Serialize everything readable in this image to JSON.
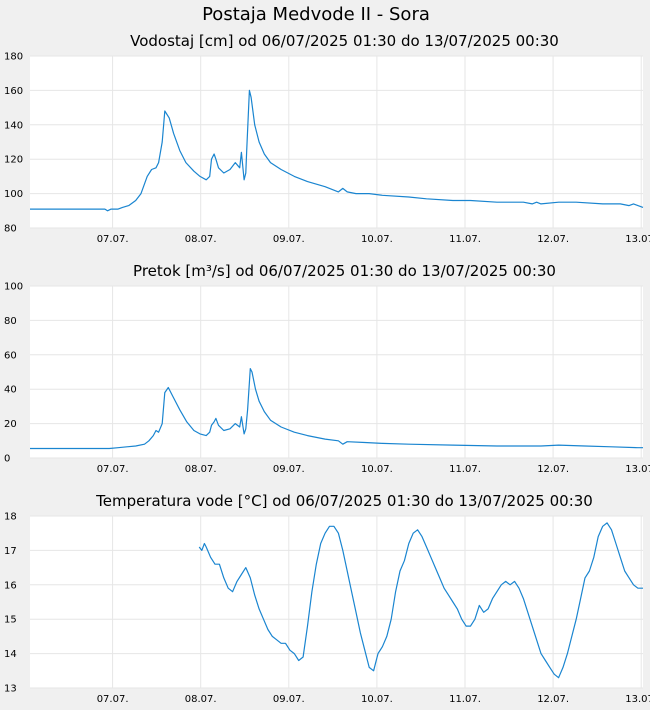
{
  "figure_title": "Postaja Medvode II - Sora",
  "chart_data": [
    {
      "type": "line",
      "title": "Vodostaj [cm] od 06/07/2025 01:30 do 13/07/2025 00:30",
      "x_ticks": [
        "07.07.",
        "08.07.",
        "09.07.",
        "10.07.",
        "11.07.",
        "12.07.",
        "13.07."
      ],
      "x_tick_days": [
        0.9375,
        1.9375,
        2.9375,
        3.9375,
        4.9375,
        5.9375,
        6.9375
      ],
      "x_range_days": [
        0,
        6.958
      ],
      "ylim": [
        80,
        180
      ],
      "y_ticks": [
        80,
        100,
        120,
        140,
        160,
        180
      ],
      "grid": true,
      "line_color": "#1a85d0",
      "series": [
        {
          "x": [
            0,
            0.4,
            0.85,
            0.88,
            0.92,
            1.0,
            1.05,
            1.12,
            1.2,
            1.26,
            1.33,
            1.38,
            1.43,
            1.46,
            1.5,
            1.53,
            1.58,
            1.63,
            1.7,
            1.77,
            1.86,
            1.93,
            2.0,
            2.04,
            2.06,
            2.09,
            2.11,
            2.14,
            2.2,
            2.27,
            2.33,
            2.38,
            2.4,
            2.43,
            2.45,
            2.46,
            2.49,
            2.51,
            2.53,
            2.55,
            2.6,
            2.66,
            2.73,
            2.85,
            3.0,
            3.15,
            3.35,
            3.5,
            3.55,
            3.6,
            3.7,
            3.85,
            4.0,
            4.3,
            4.5,
            4.8,
            5.0,
            5.3,
            5.4,
            5.5,
            5.6,
            5.7,
            5.75,
            5.8,
            6.0,
            6.2,
            6.5,
            6.7,
            6.8,
            6.85,
            6.9,
            6.958
          ],
          "y": [
            91,
            91,
            91,
            90,
            91,
            91,
            92,
            93,
            96,
            100,
            110,
            114,
            115,
            118,
            130,
            148,
            144,
            135,
            125,
            118,
            113,
            110,
            108,
            110,
            120,
            123,
            120,
            115,
            112,
            114,
            118,
            115,
            124,
            108,
            112,
            125,
            160,
            156,
            148,
            140,
            130,
            123,
            118,
            114,
            110,
            107,
            104,
            101,
            103,
            101,
            100,
            100,
            99,
            98,
            97,
            96,
            96,
            95,
            95,
            95,
            95,
            94,
            95,
            94,
            95,
            95,
            94,
            94,
            93,
            94,
            93,
            92
          ]
        }
      ]
    },
    {
      "type": "line",
      "title": "Pretok [m³/s] od 06/07/2025 01:30 do 13/07/2025 00:30",
      "x_ticks": [
        "07.07.",
        "08.07.",
        "09.07.",
        "10.07.",
        "11.07.",
        "12.07.",
        "13.07."
      ],
      "x_tick_days": [
        0.9375,
        1.9375,
        2.9375,
        3.9375,
        4.9375,
        5.9375,
        6.9375
      ],
      "x_range_days": [
        0,
        6.958
      ],
      "ylim": [
        0,
        100
      ],
      "y_ticks": [
        0,
        20,
        40,
        60,
        80,
        100
      ],
      "grid": true,
      "line_color": "#1a85d0",
      "series": [
        {
          "x": [
            0,
            0.9,
            1.0,
            1.1,
            1.2,
            1.3,
            1.35,
            1.4,
            1.43,
            1.46,
            1.5,
            1.53,
            1.57,
            1.62,
            1.7,
            1.78,
            1.86,
            1.93,
            2.0,
            2.04,
            2.06,
            2.09,
            2.11,
            2.14,
            2.2,
            2.27,
            2.33,
            2.38,
            2.4,
            2.43,
            2.45,
            2.47,
            2.5,
            2.52,
            2.56,
            2.6,
            2.66,
            2.73,
            2.85,
            3.0,
            3.15,
            3.35,
            3.5,
            3.55,
            3.6,
            3.8,
            4.0,
            4.3,
            4.8,
            5.3,
            5.5,
            5.8,
            6.0,
            6.3,
            6.6,
            6.9,
            6.958
          ],
          "y": [
            5.5,
            5.5,
            6,
            6.5,
            7,
            8,
            10,
            13,
            16,
            15,
            20,
            38,
            41,
            36,
            28,
            21,
            16,
            14,
            13,
            15,
            19,
            21,
            23,
            19,
            16,
            17,
            20,
            18,
            24,
            14,
            17,
            28,
            52,
            50,
            40,
            33,
            27,
            22,
            18,
            15,
            13,
            11,
            10,
            8,
            9.5,
            9,
            8.5,
            8,
            7.5,
            7,
            7,
            7,
            7.5,
            7,
            6.5,
            6,
            6
          ]
        }
      ]
    },
    {
      "type": "line",
      "title": "Temperatura vode [°C] od 06/07/2025 01:30 do 13/07/2025 00:30",
      "x_ticks": [
        "07.07.",
        "08.07.",
        "09.07.",
        "10.07.",
        "11.07.",
        "12.07.",
        "13.07."
      ],
      "x_tick_days": [
        0.9375,
        1.9375,
        2.9375,
        3.9375,
        4.9375,
        5.9375,
        6.9375
      ],
      "x_range_days": [
        0,
        6.958
      ],
      "ylim": [
        13,
        18
      ],
      "y_ticks": [
        13,
        14,
        15,
        16,
        17,
        18
      ],
      "grid": true,
      "line_color": "#1a85d0",
      "series": [
        {
          "x": [
            1.92,
            1.95,
            1.98,
            2.0,
            2.05,
            2.1,
            2.15,
            2.2,
            2.25,
            2.3,
            2.35,
            2.4,
            2.45,
            2.5,
            2.55,
            2.6,
            2.65,
            2.7,
            2.75,
            2.8,
            2.85,
            2.9,
            2.95,
            3.0,
            3.05,
            3.1,
            3.15,
            3.2,
            3.25,
            3.3,
            3.35,
            3.4,
            3.45,
            3.5,
            3.55,
            3.6,
            3.65,
            3.7,
            3.75,
            3.8,
            3.85,
            3.9,
            3.95,
            4.0,
            4.05,
            4.1,
            4.15,
            4.2,
            4.25,
            4.3,
            4.35,
            4.4,
            4.45,
            4.5,
            4.55,
            4.6,
            4.65,
            4.7,
            4.75,
            4.8,
            4.85,
            4.9,
            4.95,
            5.0,
            5.05,
            5.1,
            5.15,
            5.2,
            5.25,
            5.3,
            5.35,
            5.4,
            5.45,
            5.5,
            5.55,
            5.6,
            5.65,
            5.7,
            5.75,
            5.8,
            5.85,
            5.9,
            5.95,
            6.0,
            6.05,
            6.1,
            6.15,
            6.2,
            6.25,
            6.3,
            6.35,
            6.4,
            6.45,
            6.5,
            6.55,
            6.6,
            6.65,
            6.7,
            6.75,
            6.8,
            6.85,
            6.9,
            6.958
          ],
          "y": [
            17.1,
            17.0,
            17.2,
            17.1,
            16.8,
            16.6,
            16.6,
            16.2,
            15.9,
            15.8,
            16.1,
            16.3,
            16.5,
            16.2,
            15.7,
            15.3,
            15.0,
            14.7,
            14.5,
            14.4,
            14.3,
            14.3,
            14.1,
            14.0,
            13.8,
            13.9,
            14.8,
            15.8,
            16.6,
            17.2,
            17.5,
            17.7,
            17.7,
            17.5,
            17.0,
            16.4,
            15.8,
            15.2,
            14.6,
            14.1,
            13.6,
            13.5,
            14.0,
            14.2,
            14.5,
            15.0,
            15.8,
            16.4,
            16.7,
            17.2,
            17.5,
            17.6,
            17.4,
            17.1,
            16.8,
            16.5,
            16.2,
            15.9,
            15.7,
            15.5,
            15.3,
            15.0,
            14.8,
            14.8,
            15.0,
            15.4,
            15.2,
            15.3,
            15.6,
            15.8,
            16.0,
            16.1,
            16.0,
            16.1,
            15.9,
            15.6,
            15.2,
            14.8,
            14.4,
            14.0,
            13.8,
            13.6,
            13.4,
            13.3,
            13.6,
            14.0,
            14.5,
            15.0,
            15.6,
            16.2,
            16.4,
            16.8,
            17.4,
            17.7,
            17.8,
            17.6,
            17.2,
            16.8,
            16.4,
            16.2,
            16.0,
            15.9,
            15.9
          ]
        }
      ]
    }
  ]
}
